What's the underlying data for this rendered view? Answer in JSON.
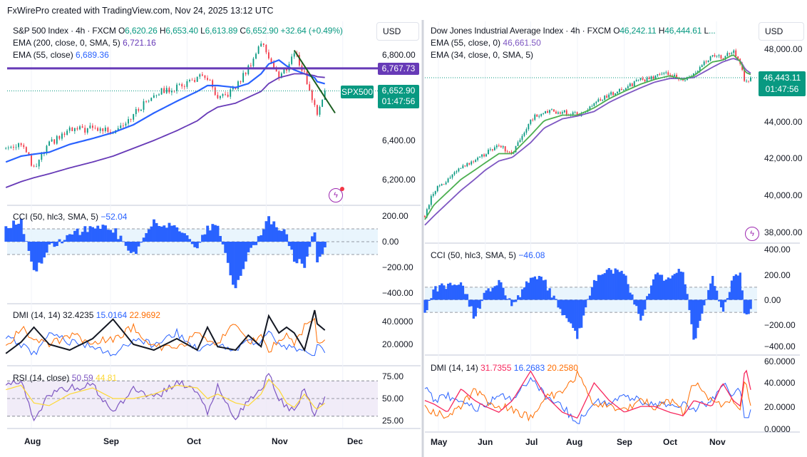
{
  "header": {
    "attribution": "FxWirePro created with TradingView.com, Nov 24, 2025 13:12 UTC"
  },
  "left": {
    "symbol": "S&P 500 Index · 4h · FXCM",
    "ohlc": [
      {
        "k": "O",
        "v": "6,620.26"
      },
      {
        "k": "H",
        "v": "6,653.40"
      },
      {
        "k": "L",
        "v": "6,613.89"
      },
      {
        "k": "C",
        "v": "6,652.90"
      }
    ],
    "change": "+32.64 (+0.49%)",
    "ema1": {
      "label": "EMA (200, close, 0, SMA, 5)",
      "value": "6,721.16"
    },
    "ema2": {
      "label": "EMA (55, close)",
      "value": "6,689.36"
    },
    "currency": "USD",
    "price_ticks": [
      "6,800.00",
      "6,400.00",
      "6,200.00"
    ],
    "hline_label": "6,767.73",
    "symbol_tag": "SPX500",
    "last_price": "6,652.90",
    "countdown": "01:47:56",
    "cci": {
      "label": "CCI (50, hlc3, SMA, 5)",
      "value": "−52.04",
      "ticks": [
        "200.00",
        "0.00",
        "−200.00",
        "−400.00"
      ]
    },
    "dmi": {
      "label": "DMI (14, 14)",
      "adx": "32.4235",
      "plus": "15.0164",
      "minus": "22.9692",
      "ticks": [
        "40.0000",
        "20.0000"
      ]
    },
    "rsi": {
      "label": "RSI (14, close)",
      "value": "50.59",
      "ma": "44.81",
      "ticks": [
        "75.00",
        "50.00",
        "25.00"
      ]
    },
    "time_ticks": [
      "Aug",
      "Sep",
      "Oct",
      "Nov",
      "Dec"
    ]
  },
  "right": {
    "symbol": "Dow Jones Industrial Average Index · 4h · FXCM",
    "ohlc": [
      {
        "k": "O",
        "v": "46,242.11"
      },
      {
        "k": "H",
        "v": "46,444.61"
      },
      {
        "k": "L",
        "v": "..."
      }
    ],
    "ema1": {
      "label": "EMA (55, close, 0)",
      "value": "46,661.50"
    },
    "ema2": {
      "label": "EMA (34, close, 0, SMA, 5)",
      "value": ""
    },
    "currency": "USD",
    "price_ticks": [
      "48,000.00",
      "44,000.00",
      "42,000.00",
      "40,000.00",
      "38,000.00"
    ],
    "last_price": "46,443.11",
    "countdown": "01:47:56",
    "cci": {
      "label": "CCI (50, hlc3, SMA, 5)",
      "value": "−46.08",
      "ticks": [
        "400.00",
        "200.00",
        "0.00",
        "−200.00",
        "−400.00"
      ]
    },
    "dmi": {
      "label": "DMI (14, 14)",
      "adx": "31.7355",
      "plus": "16.2683",
      "minus": "20.2580",
      "ticks": [
        "60.0000",
        "40.0000",
        "20.0000",
        "0.0000"
      ]
    },
    "time_ticks": [
      "May",
      "Jun",
      "Jul",
      "Aug",
      "Sep",
      "Oct",
      "Nov"
    ]
  },
  "colors": {
    "up": "#089981",
    "down": "#f23645",
    "ema55_left": "#2962ff",
    "ema200_left": "#673ab7",
    "trendline": "#1b5e20",
    "hline": "#673ab7",
    "cci": "#2962ff",
    "adx_left": "#131722",
    "adx_right": "#f7285e",
    "di_plus": "#2962ff",
    "di_minus": "#ff6d00",
    "rsi": "#7e57c2",
    "rsi_ma": "#fdd835",
    "ema55_right": "#7e57c2",
    "ema34_right": "#4caf50"
  },
  "icons": {
    "tv_indicator": "tradingview-lightning-icon"
  },
  "chart_data": [
    {
      "type": "candlestick",
      "title": "S&P 500 Index · 4h · FXCM",
      "x": [
        "2025-07-22",
        "2025-07-28",
        "2025-08-02",
        "2025-08-08",
        "2025-08-16",
        "2025-08-25",
        "2025-09-02",
        "2025-09-10",
        "2025-09-18",
        "2025-09-27",
        "2025-10-05",
        "2025-10-09",
        "2025-10-13",
        "2025-10-20",
        "2025-10-25",
        "2025-10-30",
        "2025-11-02",
        "2025-11-06",
        "2025-11-09",
        "2025-11-12",
        "2025-11-16",
        "2025-11-20",
        "2025-11-21",
        "2025-11-24"
      ],
      "close": [
        6360,
        6390,
        6250,
        6380,
        6450,
        6460,
        6450,
        6530,
        6640,
        6670,
        6720,
        6720,
        6600,
        6670,
        6770,
        6900,
        6830,
        6720,
        6770,
        6850,
        6740,
        6570,
        6540,
        6652.9
      ],
      "series": [
        {
          "name": "EMA (55, close)",
          "values": [
            6290,
            6320,
            6330,
            6340,
            6380,
            6410,
            6440,
            6480,
            6540,
            6600,
            6650,
            6680,
            6680,
            6670,
            6690,
            6740,
            6790,
            6810,
            6780,
            6760,
            6740,
            6720,
            6700,
            6689.36
          ]
        },
        {
          "name": "EMA (200, close, 0, SMA, 5)",
          "values": [
            6160,
            6190,
            6210,
            6230,
            6260,
            6290,
            6320,
            6360,
            6400,
            6450,
            6500,
            6540,
            6570,
            6590,
            6620,
            6650,
            6690,
            6720,
            6730,
            6740,
            6740,
            6730,
            6725,
            6721.16
          ]
        }
      ],
      "horizontal_line": 6767.73,
      "trendline": [
        {
          "x": "2025-11-12",
          "y": 6860
        },
        {
          "x": "2025-11-28",
          "y": 6540
        }
      ],
      "ylim": [
        6150,
        6920
      ],
      "indicators": {
        "cci": {
          "values": [
            120,
            150,
            -250,
            -50,
            50,
            120,
            100,
            -100,
            150,
            100,
            -30,
            120,
            100,
            -380,
            -100,
            50,
            180,
            100,
            50,
            -150,
            -180,
            80,
            -150,
            -52.04
          ],
          "ylim": [
            -420,
            230
          ],
          "bands": [
            -100,
            100
          ]
        },
        "dmi": {
          "adx": [
            12,
            22,
            35,
            20,
            15,
            25,
            42,
            20,
            15,
            25,
            15,
            35,
            18,
            15,
            28,
            18,
            45,
            30,
            35,
            30,
            15,
            50,
            38,
            32.42
          ],
          "di_plus": [
            25,
            20,
            12,
            28,
            22,
            18,
            10,
            25,
            20,
            30,
            15,
            22,
            20,
            14,
            25,
            20,
            35,
            20,
            18,
            15,
            14,
            12,
            18,
            15.02
          ],
          "di_minus": [
            18,
            35,
            25,
            20,
            28,
            22,
            25,
            35,
            18,
            15,
            30,
            25,
            20,
            40,
            22,
            28,
            12,
            25,
            30,
            20,
            35,
            40,
            25,
            22.97
          ]
        },
        "rsi": {
          "values": [
            65,
            70,
            25,
            55,
            62,
            65,
            35,
            60,
            50,
            68,
            60,
            35,
            65,
            25,
            50,
            60,
            78,
            50,
            40,
            35,
            62,
            30,
            38,
            50.59
          ],
          "ma": [
            60,
            65,
            45,
            42,
            55,
            62,
            50,
            50,
            55,
            65,
            62,
            50,
            55,
            45,
            42,
            55,
            72,
            60,
            45,
            40,
            55,
            40,
            38,
            44.81
          ],
          "bands": [
            30,
            50,
            70
          ]
        }
      }
    },
    {
      "type": "candlestick",
      "title": "Dow Jones Industrial Average Index · 4h · FXCM",
      "x": [
        "2025-04-22",
        "2025-04-28",
        "2025-05-07",
        "2025-05-16",
        "2025-05-25",
        "2025-06-01",
        "2025-06-10",
        "2025-06-19",
        "2025-07-01",
        "2025-07-10",
        "2025-07-22",
        "2025-08-01",
        "2025-08-12",
        "2025-08-22",
        "2025-09-01",
        "2025-09-12",
        "2025-09-21",
        "2025-10-01",
        "2025-10-10",
        "2025-10-17",
        "2025-10-29",
        "2025-11-05",
        "2025-11-12",
        "2025-11-17",
        "2025-11-20",
        "2025-11-24"
      ],
      "close": [
        38900,
        40300,
        40900,
        41500,
        41900,
        42300,
        42700,
        42300,
        44200,
        44600,
        44600,
        44400,
        45000,
        45500,
        45900,
        46300,
        46500,
        46700,
        46300,
        46700,
        47700,
        47500,
        47900,
        47100,
        46100,
        46443.11
      ],
      "series": [
        {
          "name": "EMA (55, close, 0)",
          "values": [
            38400,
            38900,
            39600,
            40300,
            40900,
            41400,
            41900,
            42100,
            42900,
            43700,
            44200,
            44350,
            44600,
            45100,
            45500,
            45900,
            46200,
            46400,
            46400,
            46450,
            47000,
            47300,
            47500,
            47350,
            46900,
            46661.5
          ]
        },
        {
          "name": "EMA (34, close, 0, SMA, 5)",
          "values": [
            38700,
            39500,
            40200,
            40900,
            41400,
            41800,
            42300,
            42300,
            43300,
            44100,
            44400,
            44400,
            44800,
            45300,
            45700,
            46100,
            46350,
            46550,
            46350,
            46550,
            47300,
            47400,
            47700,
            47300,
            46750,
            46600
          ]
        }
      ],
      "ylim": [
        37500,
        48500
      ],
      "indicators": {
        "cci": {
          "values": [
            -100,
            80,
            120,
            150,
            -150,
            50,
            150,
            -50,
            180,
            150,
            -100,
            -300,
            150,
            250,
            200,
            -150,
            200,
            150,
            250,
            -350,
            200,
            -100,
            180,
            200,
            -150,
            -46.08
          ],
          "ylim": [
            -400,
            400
          ],
          "bands": [
            -100,
            100
          ]
        },
        "dmi": {
          "adx": [
            25,
            22,
            15,
            35,
            25,
            20,
            15,
            25,
            50,
            30,
            15,
            10,
            40,
            25,
            15,
            20,
            20,
            15,
            12,
            25,
            20,
            40,
            25,
            20,
            55,
            31.74
          ],
          "di_plus": [
            35,
            25,
            30,
            22,
            18,
            20,
            30,
            25,
            45,
            30,
            20,
            5,
            25,
            22,
            30,
            25,
            22,
            20,
            22,
            18,
            25,
            40,
            30,
            35,
            8,
            16.27
          ],
          "di_minus": [
            20,
            15,
            12,
            20,
            35,
            25,
            20,
            18,
            10,
            28,
            30,
            48,
            22,
            20,
            18,
            25,
            20,
            25,
            15,
            40,
            25,
            20,
            25,
            20,
            45,
            20.26
          ]
        }
      }
    }
  ]
}
